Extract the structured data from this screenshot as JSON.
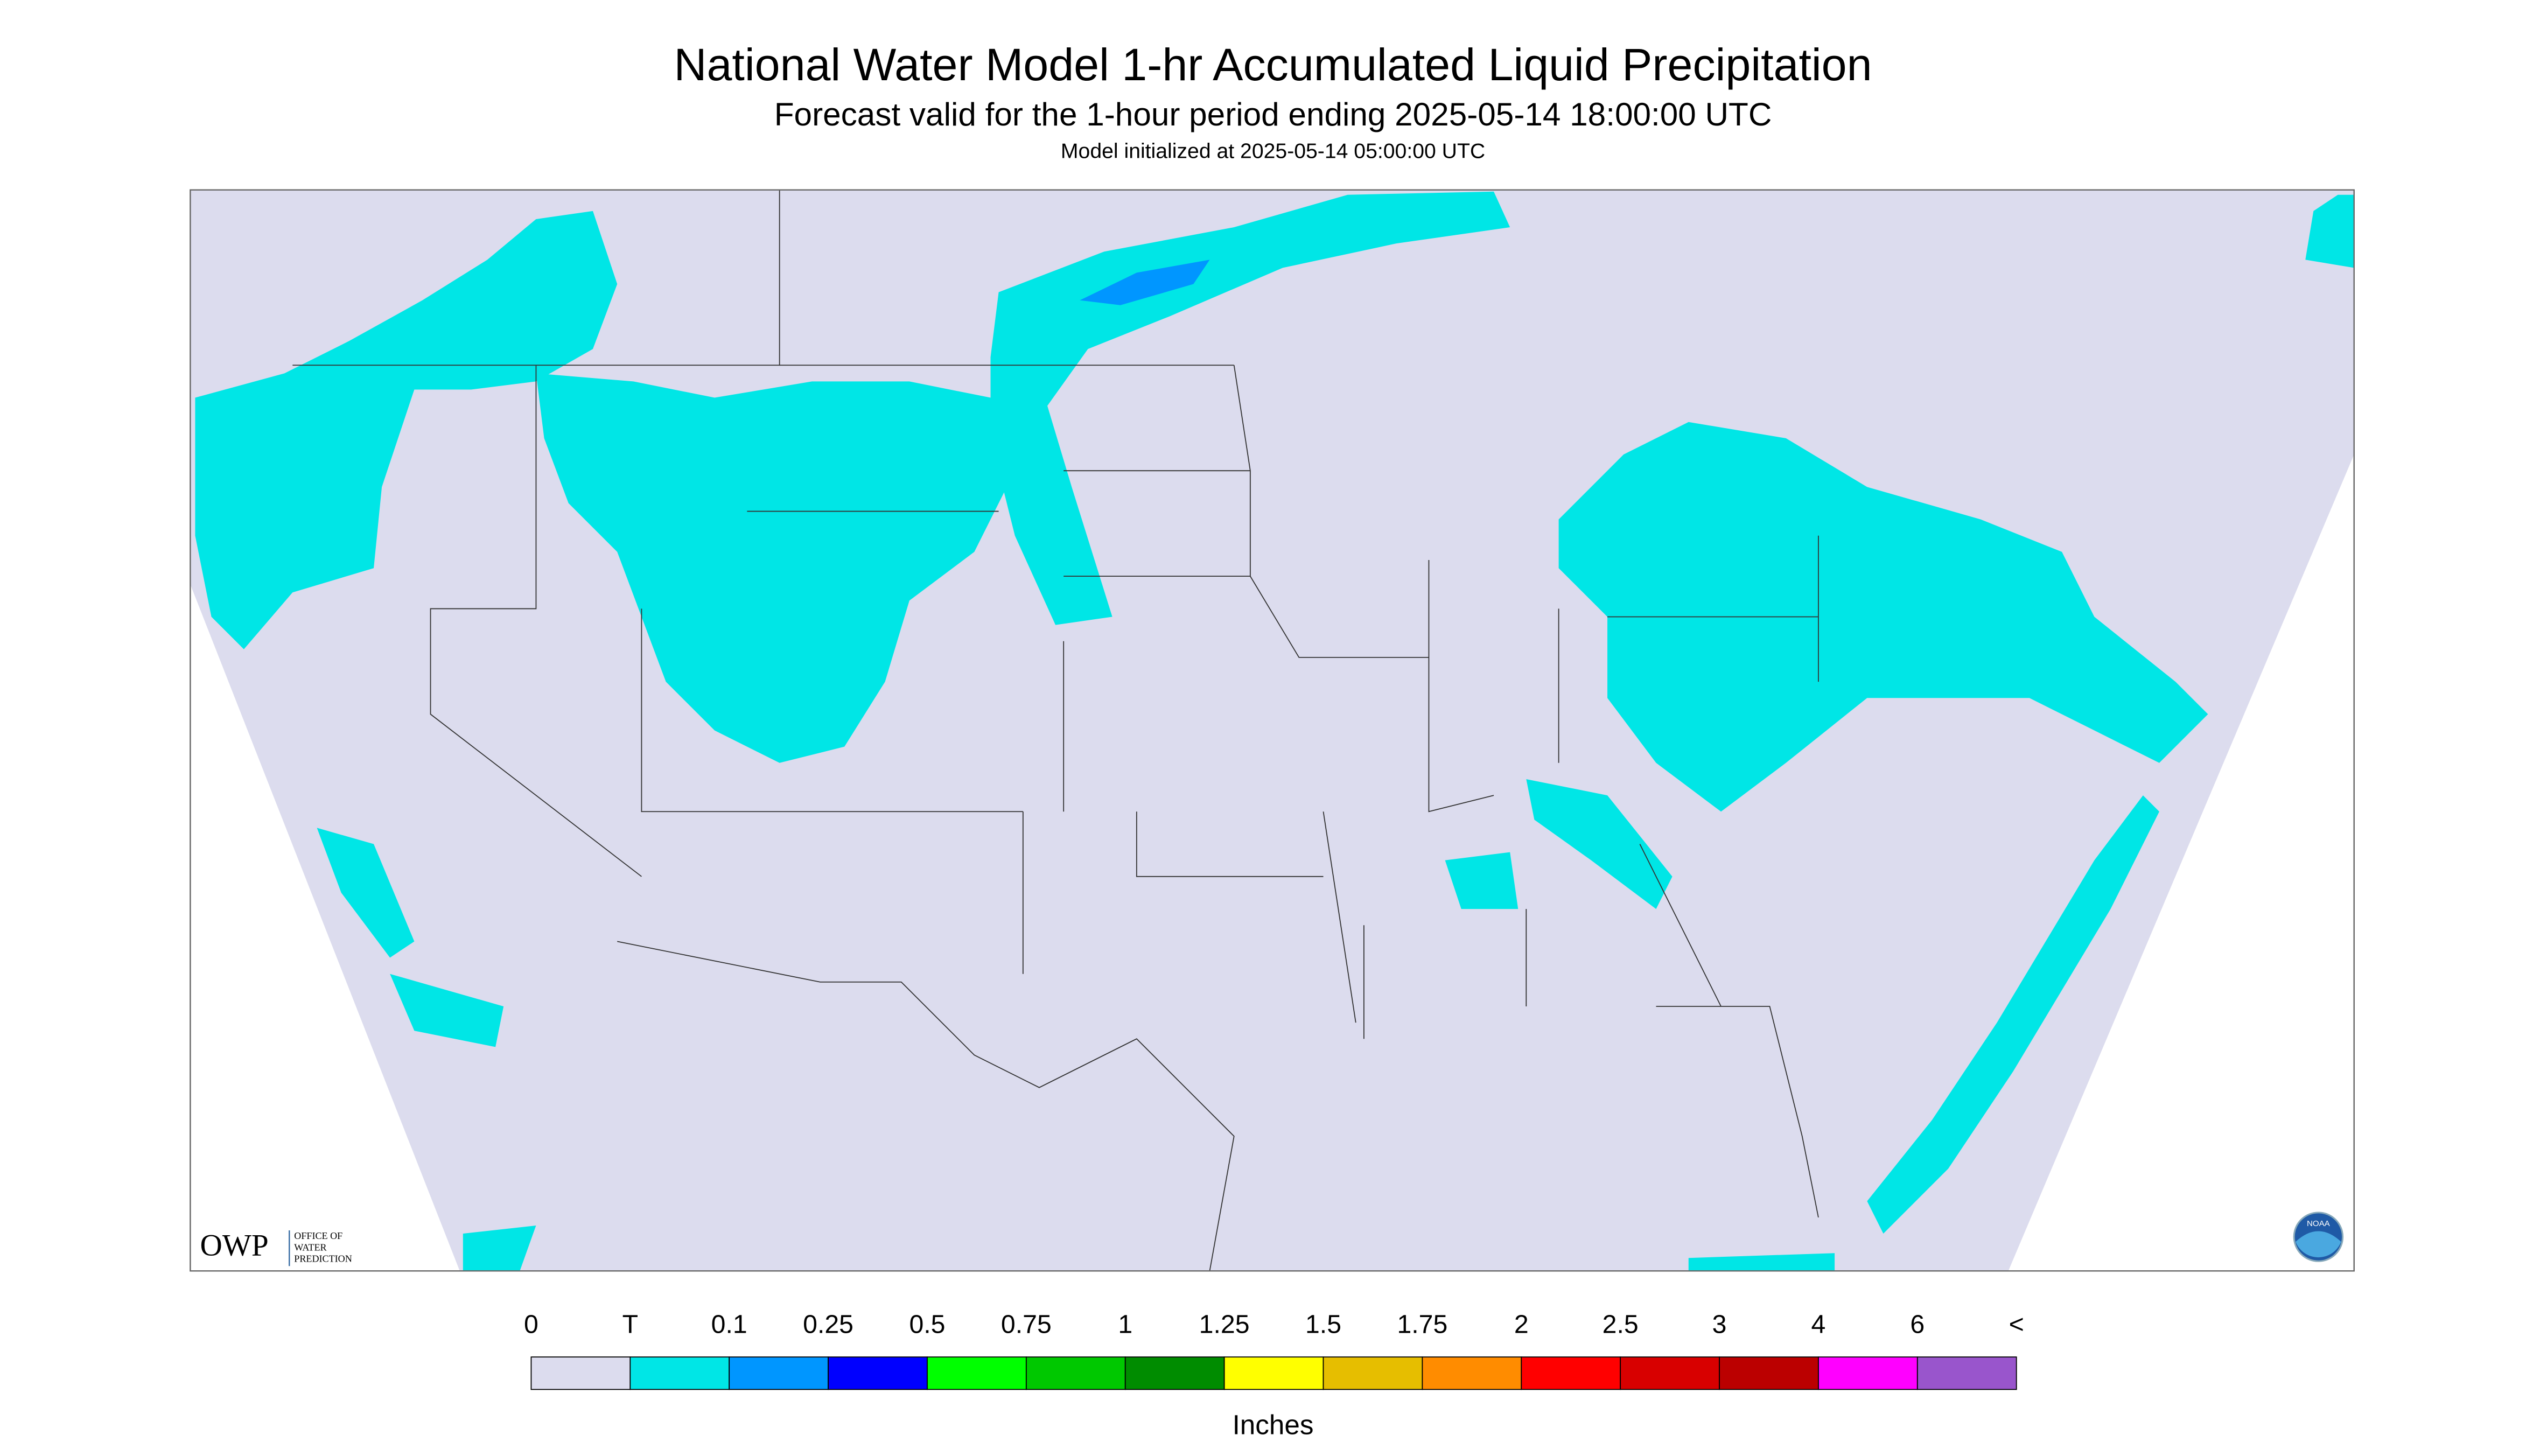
{
  "header": {
    "title": "National Water Model 1-hr Accumulated Liquid Precipitation",
    "subtitle": "Forecast valid for the 1-hour period ending 2025-05-14 18:00:00 UTC",
    "note": "Model initialized at 2025-05-14 05:00:00 UTC"
  },
  "logo": {
    "name": "OWP",
    "text": [
      "OFFICE OF",
      "WATER",
      "PREDICTION"
    ],
    "badge": "NOAA"
  },
  "legend": {
    "labels": [
      "0",
      "T",
      "0.1",
      "0.25",
      "0.5",
      "0.75",
      "1",
      "1.25",
      "1.5",
      "1.75",
      "2",
      "2.5",
      "3",
      "4",
      "6",
      "<"
    ],
    "colors": [
      "#dcdcee",
      "#00e6e6",
      "#0096ff",
      "#0000ff",
      "#00ff00",
      "#00c800",
      "#008c00",
      "#ffff00",
      "#e6be00",
      "#ff8c00",
      "#ff0000",
      "#d80000",
      "#bb0000",
      "#ff00ff",
      "#9955cc"
    ],
    "unit": "Inches"
  }
}
